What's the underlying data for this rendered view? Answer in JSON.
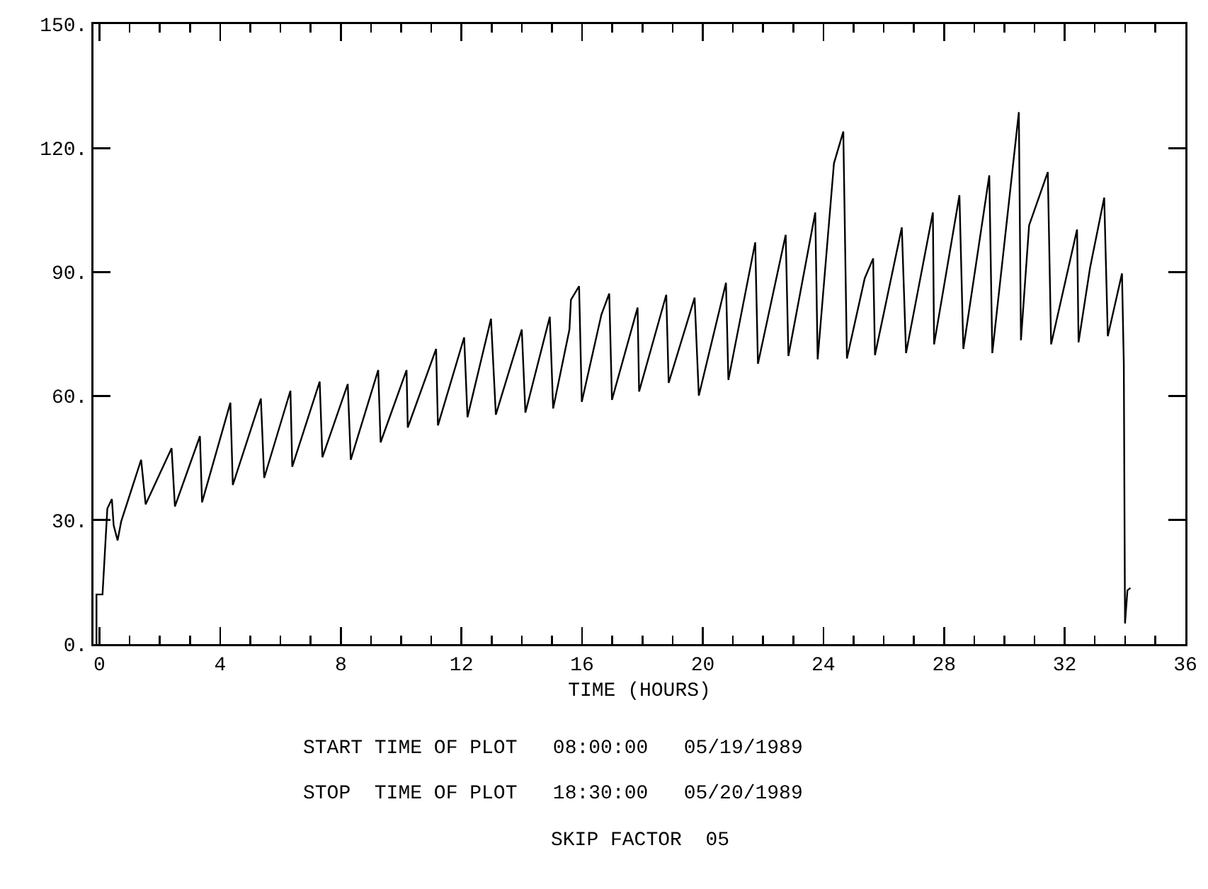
{
  "chart_data": {
    "type": "line",
    "xlabel": "TIME (HOURS)",
    "x": [
      -0.1,
      -0.1,
      0.1,
      0.26,
      0.41,
      0.47,
      0.6,
      0.72,
      1.38,
      1.53,
      2.39,
      2.5,
      3.33,
      3.4,
      4.34,
      4.42,
      5.35,
      5.46,
      6.33,
      6.39,
      7.3,
      7.39,
      8.23,
      8.33,
      9.24,
      9.32,
      10.18,
      10.22,
      11.16,
      11.22,
      12.09,
      12.2,
      12.98,
      13.14,
      14.0,
      14.12,
      14.93,
      15.04,
      15.58,
      15.63,
      15.9,
      15.99,
      16.64,
      16.9,
      16.99,
      17.84,
      17.89,
      18.79,
      18.87,
      19.73,
      19.87,
      20.77,
      20.85,
      21.74,
      21.83,
      22.75,
      22.84,
      23.73,
      23.81,
      24.35,
      24.66,
      24.78,
      25.37,
      25.65,
      25.71,
      26.6,
      26.74,
      27.63,
      27.67,
      28.51,
      28.64,
      29.5,
      29.6,
      30.48,
      30.55,
      30.82,
      31.44,
      31.55,
      32.41,
      32.46,
      32.84,
      33.31,
      33.43,
      33.9,
      33.96,
      34.0,
      34.08,
      34.18
    ],
    "series": [
      {
        "color": "#000000",
        "values": [
          0,
          12,
          12,
          32.8,
          35.1,
          28.7,
          25.1,
          29.7,
          44.6,
          33.8,
          47.4,
          33.3,
          50.3,
          34.3,
          58.4,
          38.5,
          59.4,
          40.2,
          61.3,
          42.9,
          63.5,
          45.2,
          62.9,
          44.6,
          66.3,
          48.8,
          66.3,
          52.4,
          71.4,
          52.9,
          74.2,
          54.9,
          78.7,
          55.5,
          76.1,
          56,
          79.2,
          57,
          76.1,
          83.3,
          86.6,
          58.6,
          79.7,
          84.8,
          59.1,
          81.4,
          61.1,
          84.5,
          63.2,
          83.8,
          60.1,
          87.4,
          63.9,
          97.2,
          67.8,
          99,
          69.7,
          104.4,
          68.9,
          116.3,
          124,
          69.1,
          88.5,
          93.3,
          69.9,
          100.8,
          70.4,
          104.4,
          72.5,
          108.6,
          71.4,
          113.4,
          70.4,
          128.7,
          73.5,
          101.3,
          114.2,
          72.5,
          100.3,
          73,
          91,
          108,
          74.5,
          89.7,
          67.8,
          5,
          13,
          13.6
        ]
      }
    ],
    "xlim": [
      -0.2,
      36
    ],
    "xticks": [
      0,
      {
        "value": 1,
        "label": null
      },
      {
        "value": 2,
        "label": null
      },
      {
        "value": 3,
        "label": null
      },
      4,
      {
        "value": 5,
        "label": null
      },
      {
        "value": 6,
        "label": null
      },
      {
        "value": 7,
        "label": null
      },
      8,
      {
        "value": 9,
        "label": null
      },
      {
        "value": 10,
        "label": null
      },
      {
        "value": 11,
        "label": null
      },
      12,
      {
        "value": 13,
        "label": null
      },
      {
        "value": 14,
        "label": null
      },
      {
        "value": 15,
        "label": null
      },
      16,
      {
        "value": 17,
        "label": null
      },
      {
        "value": 18,
        "label": null
      },
      {
        "value": 19,
        "label": null
      },
      20,
      {
        "value": 21,
        "label": null
      },
      {
        "value": 22,
        "label": null
      },
      {
        "value": 23,
        "label": null
      },
      24,
      {
        "value": 25,
        "label": null
      },
      {
        "value": 26,
        "label": null
      },
      {
        "value": 27,
        "label": null
      },
      28,
      {
        "value": 29,
        "label": null
      },
      {
        "value": 30,
        "label": null
      },
      {
        "value": 31,
        "label": null
      },
      32,
      {
        "value": 33,
        "label": null
      },
      {
        "value": 34,
        "label": null
      },
      {
        "value": 35,
        "label": null
      },
      36
    ],
    "ylim": [
      0,
      150
    ],
    "yticks": [
      {
        "value": 0,
        "label": "0."
      },
      {
        "value": 30,
        "label": "30."
      },
      {
        "value": 60,
        "label": "60."
      },
      {
        "value": 90,
        "label": "90."
      },
      {
        "value": 120,
        "label": "120."
      },
      {
        "value": 150,
        "label": "150."
      }
    ],
    "grid": false,
    "legend": false,
    "marker": "none",
    "line_style": "solid",
    "annotations": [
      "START TIME OF PLOT   08:00:00   05/19/1989",
      "STOP  TIME OF PLOT   18:30:00   05/20/1989",
      "SKIP FACTOR  05"
    ]
  }
}
